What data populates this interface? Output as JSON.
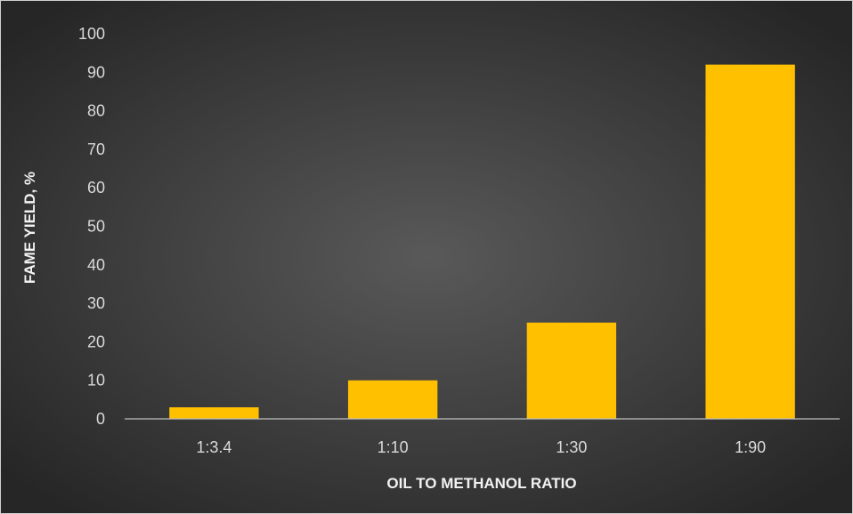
{
  "chart_data": {
    "type": "bar",
    "categories": [
      "1:3.4",
      "1:10",
      "1:30",
      "1:90"
    ],
    "values": [
      3,
      10,
      25,
      92
    ],
    "xlabel": "OIL TO METHANOL RATIO",
    "ylabel": "FAME YIELD, %",
    "ylim": [
      0,
      100
    ],
    "yticks": [
      0,
      10,
      20,
      30,
      40,
      50,
      60,
      70,
      80,
      90,
      100
    ],
    "grid": false,
    "legend": "none",
    "bar_color": "#FFC000",
    "background_color_center": "#595959",
    "background_color_edge": "#262626",
    "text_color": "#D9D9D9",
    "axis_color": "#BFBFBF"
  }
}
